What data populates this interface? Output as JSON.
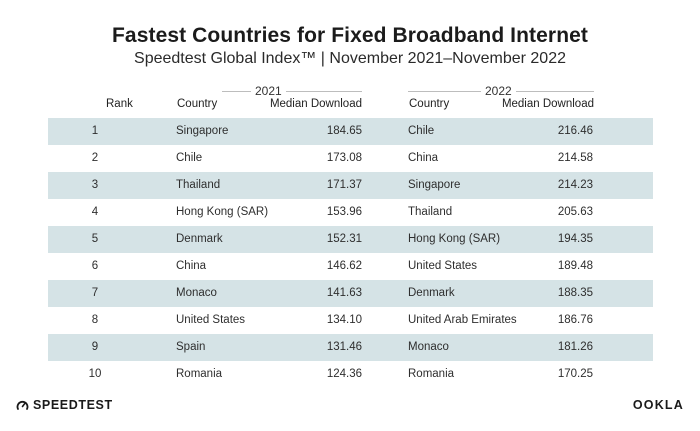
{
  "title": "Fastest Countries for Fixed Broadband Internet",
  "subtitle": "Speedtest Global Index™ | November 2021–November 2022",
  "headers": {
    "rank": "Rank",
    "country": "Country",
    "median_download": "Median Download",
    "year_2021": "2021",
    "year_2022": "2022"
  },
  "chart_data": {
    "type": "table",
    "title": "Fastest Countries for Fixed Broadband Internet",
    "subtitle": "Speedtest Global Index™ | November 2021–November 2022",
    "columns": [
      "Rank",
      "Country (2021)",
      "Median Download (2021)",
      "Country (2022)",
      "Median Download (2022)"
    ],
    "rows": [
      {
        "rank": "1",
        "country_2021": "Singapore",
        "value_2021": "184.65",
        "country_2022": "Chile",
        "value_2022": "216.46"
      },
      {
        "rank": "2",
        "country_2021": "Chile",
        "value_2021": "173.08",
        "country_2022": "China",
        "value_2022": "214.58"
      },
      {
        "rank": "3",
        "country_2021": "Thailand",
        "value_2021": "171.37",
        "country_2022": "Singapore",
        "value_2022": "214.23"
      },
      {
        "rank": "4",
        "country_2021": "Hong Kong (SAR)",
        "value_2021": "153.96",
        "country_2022": "Thailand",
        "value_2022": "205.63"
      },
      {
        "rank": "5",
        "country_2021": "Denmark",
        "value_2021": "152.31",
        "country_2022": "Hong Kong (SAR)",
        "value_2022": "194.35"
      },
      {
        "rank": "6",
        "country_2021": "China",
        "value_2021": "146.62",
        "country_2022": "United States",
        "value_2022": "189.48"
      },
      {
        "rank": "7",
        "country_2021": "Monaco",
        "value_2021": "141.63",
        "country_2022": "Denmark",
        "value_2022": "188.35"
      },
      {
        "rank": "8",
        "country_2021": "United States",
        "value_2021": "134.10",
        "country_2022": "United Arab Emirates",
        "value_2022": "186.76"
      },
      {
        "rank": "9",
        "country_2021": "Spain",
        "value_2021": "131.46",
        "country_2022": "Monaco",
        "value_2022": "181.26"
      },
      {
        "rank": "10",
        "country_2021": "Romania",
        "value_2021": "124.36",
        "country_2022": "Romania",
        "value_2022": "170.25"
      }
    ],
    "row_shading_color": "#d5e3e6"
  },
  "branding": {
    "left_logo": "SPEEDTEST",
    "right_logo": "OOKLA"
  },
  "colors": {
    "shaded_row": "#d5e3e6",
    "text": "#222222"
  }
}
